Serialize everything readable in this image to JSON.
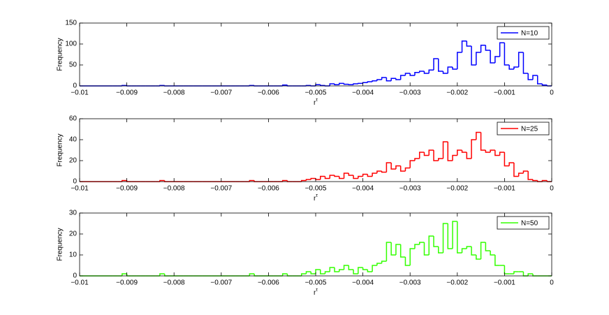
{
  "chart_data": [
    {
      "type": "histogram",
      "name": "N=10",
      "color": "#0000ff",
      "legend": "upper right",
      "ylabel": "Frequency",
      "xlabel": "r",
      "xlabel_superscript": "τ",
      "xlim": [
        -0.01,
        0
      ],
      "ylim": [
        0,
        150
      ],
      "xticks": [
        {
          "value": -0.01,
          "label": "−0.01"
        },
        {
          "value": -0.009,
          "label": "−0.009"
        },
        {
          "value": -0.008,
          "label": "−0.008"
        },
        {
          "value": -0.007,
          "label": "−0.007"
        },
        {
          "value": -0.006,
          "label": "−0.006"
        },
        {
          "value": -0.005,
          "label": "−0.005"
        },
        {
          "value": -0.004,
          "label": "−0.004"
        },
        {
          "value": -0.003,
          "label": "−0.003"
        },
        {
          "value": -0.002,
          "label": "−0.002"
        },
        {
          "value": -0.001,
          "label": "−0.001"
        },
        0
      ],
      "yticks": [
        0,
        50,
        100,
        150
      ],
      "bins": [
        -0.0093,
        -0.0092,
        -0.0091,
        -0.009,
        -0.0089,
        -0.0088,
        -0.0087,
        -0.0086,
        -0.0085,
        -0.0084,
        -0.0083,
        -0.0082,
        -0.0081,
        -0.008,
        -0.0079,
        -0.0078,
        -0.0077,
        -0.0076,
        -0.0075,
        -0.0074,
        -0.0073,
        -0.0072,
        -0.0071,
        -0.007,
        -0.0069,
        -0.0068,
        -0.0067,
        -0.0066,
        -0.0065,
        -0.0064,
        -0.0063,
        -0.0062,
        -0.0061,
        -0.006,
        -0.0059,
        -0.0058,
        -0.0057,
        -0.0056,
        -0.0055,
        -0.0054,
        -0.0053,
        -0.0052,
        -0.0051,
        -0.005,
        -0.0049,
        -0.0048,
        -0.0047,
        -0.0046,
        -0.0045,
        -0.0044,
        -0.0043,
        -0.0042,
        -0.0041,
        -0.004,
        -0.0039,
        -0.0038,
        -0.0037,
        -0.0036,
        -0.0035,
        -0.0034,
        -0.0033,
        -0.0032,
        -0.0031,
        -0.003,
        -0.0029,
        -0.0028,
        -0.0027,
        -0.0026,
        -0.0025,
        -0.0024,
        -0.0023,
        -0.0022,
        -0.0021,
        -0.002,
        -0.0019,
        -0.0018,
        -0.0017,
        -0.0016,
        -0.0015,
        -0.0014,
        -0.0013,
        -0.0012,
        -0.0011,
        -0.001,
        -0.0009,
        -0.0008,
        -0.0007,
        -0.0006,
        -0.0005,
        -0.0004,
        -0.0003,
        -0.0002,
        -0.0001
      ],
      "values": [
        0,
        0,
        1,
        0,
        0,
        0,
        0,
        0,
        0,
        0,
        1,
        0,
        0,
        0,
        0,
        0,
        0,
        0,
        0,
        0,
        0,
        0,
        0,
        0,
        0,
        0,
        0,
        0,
        0,
        1,
        0,
        0,
        0,
        0,
        0,
        0,
        2,
        0,
        0,
        0,
        0,
        1,
        0,
        3,
        1,
        0,
        5,
        3,
        6,
        4,
        3,
        5,
        6,
        8,
        10,
        12,
        15,
        20,
        12,
        18,
        15,
        25,
        30,
        25,
        32,
        35,
        30,
        38,
        65,
        35,
        30,
        45,
        40,
        80,
        107,
        95,
        50,
        80,
        97,
        85,
        55,
        70,
        103,
        50,
        40,
        45,
        80,
        30,
        15,
        25,
        5,
        2
      ]
    },
    {
      "type": "histogram",
      "name": "N=25",
      "color": "#ff0000",
      "legend": "upper right",
      "ylabel": "Frequency",
      "xlabel": "r",
      "xlabel_superscript": "τ",
      "xlim": [
        -0.01,
        0
      ],
      "ylim": [
        0,
        60
      ],
      "xticks": [
        {
          "value": -0.01,
          "label": "−0.01"
        },
        {
          "value": -0.009,
          "label": "−0.009"
        },
        {
          "value": -0.008,
          "label": "−0.008"
        },
        {
          "value": -0.007,
          "label": "−0.007"
        },
        {
          "value": -0.006,
          "label": "−0.006"
        },
        {
          "value": -0.005,
          "label": "−0.005"
        },
        {
          "value": -0.004,
          "label": "−0.004"
        },
        {
          "value": -0.003,
          "label": "−0.003"
        },
        {
          "value": -0.002,
          "label": "−0.002"
        },
        {
          "value": -0.001,
          "label": "−0.001"
        },
        0
      ],
      "yticks": [
        0,
        20,
        40,
        60
      ],
      "bins": [
        -0.0093,
        -0.0092,
        -0.0091,
        -0.009,
        -0.0089,
        -0.0088,
        -0.0087,
        -0.0086,
        -0.0085,
        -0.0084,
        -0.0083,
        -0.0082,
        -0.0081,
        -0.008,
        -0.0079,
        -0.0078,
        -0.0077,
        -0.0076,
        -0.0075,
        -0.0074,
        -0.0073,
        -0.0072,
        -0.0071,
        -0.007,
        -0.0069,
        -0.0068,
        -0.0067,
        -0.0066,
        -0.0065,
        -0.0064,
        -0.0063,
        -0.0062,
        -0.0061,
        -0.006,
        -0.0059,
        -0.0058,
        -0.0057,
        -0.0056,
        -0.0055,
        -0.0054,
        -0.0053,
        -0.0052,
        -0.0051,
        -0.005,
        -0.0049,
        -0.0048,
        -0.0047,
        -0.0046,
        -0.0045,
        -0.0044,
        -0.0043,
        -0.0042,
        -0.0041,
        -0.004,
        -0.0039,
        -0.0038,
        -0.0037,
        -0.0036,
        -0.0035,
        -0.0034,
        -0.0033,
        -0.0032,
        -0.0031,
        -0.003,
        -0.0029,
        -0.0028,
        -0.0027,
        -0.0026,
        -0.0025,
        -0.0024,
        -0.0023,
        -0.0022,
        -0.0021,
        -0.002,
        -0.0019,
        -0.0018,
        -0.0017,
        -0.0016,
        -0.0015,
        -0.0014,
        -0.0013,
        -0.0012,
        -0.0011,
        -0.001,
        -0.0009,
        -0.0008,
        -0.0007,
        -0.0006,
        -0.0005,
        -0.0004,
        -0.0003,
        -0.0002,
        -0.0001
      ],
      "values": [
        0,
        0,
        1,
        0,
        0,
        0,
        0,
        0,
        0,
        0,
        1,
        0,
        0,
        0,
        0,
        0,
        0,
        0,
        0,
        0,
        0,
        0,
        0,
        0,
        0,
        0,
        0,
        0,
        0,
        1,
        0,
        0,
        0,
        0,
        0,
        0,
        1,
        0,
        0,
        0,
        1,
        2,
        3,
        2,
        5,
        3,
        6,
        5,
        3,
        8,
        6,
        3,
        5,
        7,
        5,
        8,
        10,
        9,
        18,
        12,
        15,
        10,
        13,
        20,
        22,
        28,
        25,
        30,
        20,
        22,
        38,
        20,
        25,
        30,
        28,
        22,
        40,
        47,
        30,
        28,
        30,
        25,
        28,
        15,
        18,
        5,
        8,
        10,
        2,
        1,
        0,
        1
      ]
    },
    {
      "type": "histogram",
      "name": "N=50",
      "color": "#33ff00",
      "legend": "upper right",
      "ylabel": "Frequency",
      "xlabel": "r",
      "xlabel_superscript": "τ",
      "xlim": [
        -0.01,
        0
      ],
      "ylim": [
        0,
        30
      ],
      "xticks": [
        {
          "value": -0.01,
          "label": "−0.01"
        },
        {
          "value": -0.009,
          "label": "−0.009"
        },
        {
          "value": -0.008,
          "label": "−0.008"
        },
        {
          "value": -0.007,
          "label": "−0.007"
        },
        {
          "value": -0.006,
          "label": "−0.006"
        },
        {
          "value": -0.005,
          "label": "−0.005"
        },
        {
          "value": -0.004,
          "label": "−0.004"
        },
        {
          "value": -0.003,
          "label": "−0.003"
        },
        {
          "value": -0.002,
          "label": "−0.002"
        },
        {
          "value": -0.001,
          "label": "−0.001"
        },
        0
      ],
      "yticks": [
        0,
        10,
        20,
        30
      ],
      "bins": [
        -0.0093,
        -0.0092,
        -0.0091,
        -0.009,
        -0.0089,
        -0.0088,
        -0.0087,
        -0.0086,
        -0.0085,
        -0.0084,
        -0.0083,
        -0.0082,
        -0.0081,
        -0.008,
        -0.0079,
        -0.0078,
        -0.0077,
        -0.0076,
        -0.0075,
        -0.0074,
        -0.0073,
        -0.0072,
        -0.0071,
        -0.007,
        -0.0069,
        -0.0068,
        -0.0067,
        -0.0066,
        -0.0065,
        -0.0064,
        -0.0063,
        -0.0062,
        -0.0061,
        -0.006,
        -0.0059,
        -0.0058,
        -0.0057,
        -0.0056,
        -0.0055,
        -0.0054,
        -0.0053,
        -0.0052,
        -0.0051,
        -0.005,
        -0.0049,
        -0.0048,
        -0.0047,
        -0.0046,
        -0.0045,
        -0.0044,
        -0.0043,
        -0.0042,
        -0.0041,
        -0.004,
        -0.0039,
        -0.0038,
        -0.0037,
        -0.0036,
        -0.0035,
        -0.0034,
        -0.0033,
        -0.0032,
        -0.0031,
        -0.003,
        -0.0029,
        -0.0028,
        -0.0027,
        -0.0026,
        -0.0025,
        -0.0024,
        -0.0023,
        -0.0022,
        -0.0021,
        -0.002,
        -0.0019,
        -0.0018,
        -0.0017,
        -0.0016,
        -0.0015,
        -0.0014,
        -0.0013,
        -0.0012,
        -0.0011,
        -0.001,
        -0.0009,
        -0.0008,
        -0.0007,
        -0.0006,
        -0.0005,
        -0.0004,
        -0.0003,
        -0.0002,
        -0.0001
      ],
      "values": [
        0,
        0,
        1,
        0,
        0,
        0,
        0,
        0,
        0,
        0,
        1,
        0,
        0,
        0,
        0,
        0,
        0,
        0,
        0,
        0,
        0,
        0,
        0,
        0,
        0,
        0,
        0,
        0,
        0,
        1,
        0,
        0,
        0,
        0,
        0,
        0,
        1,
        0,
        0,
        0,
        1,
        2,
        1,
        3,
        1,
        2,
        4,
        2,
        3,
        5,
        3,
        1,
        4,
        3,
        2,
        5,
        6,
        7,
        16,
        10,
        15,
        9,
        5,
        13,
        15,
        16,
        10,
        19,
        14,
        11,
        25,
        13,
        26,
        11,
        13,
        14,
        10,
        8,
        16,
        12,
        10,
        5,
        5,
        1,
        1,
        2,
        2,
        0,
        1,
        0,
        0,
        0
      ]
    }
  ]
}
